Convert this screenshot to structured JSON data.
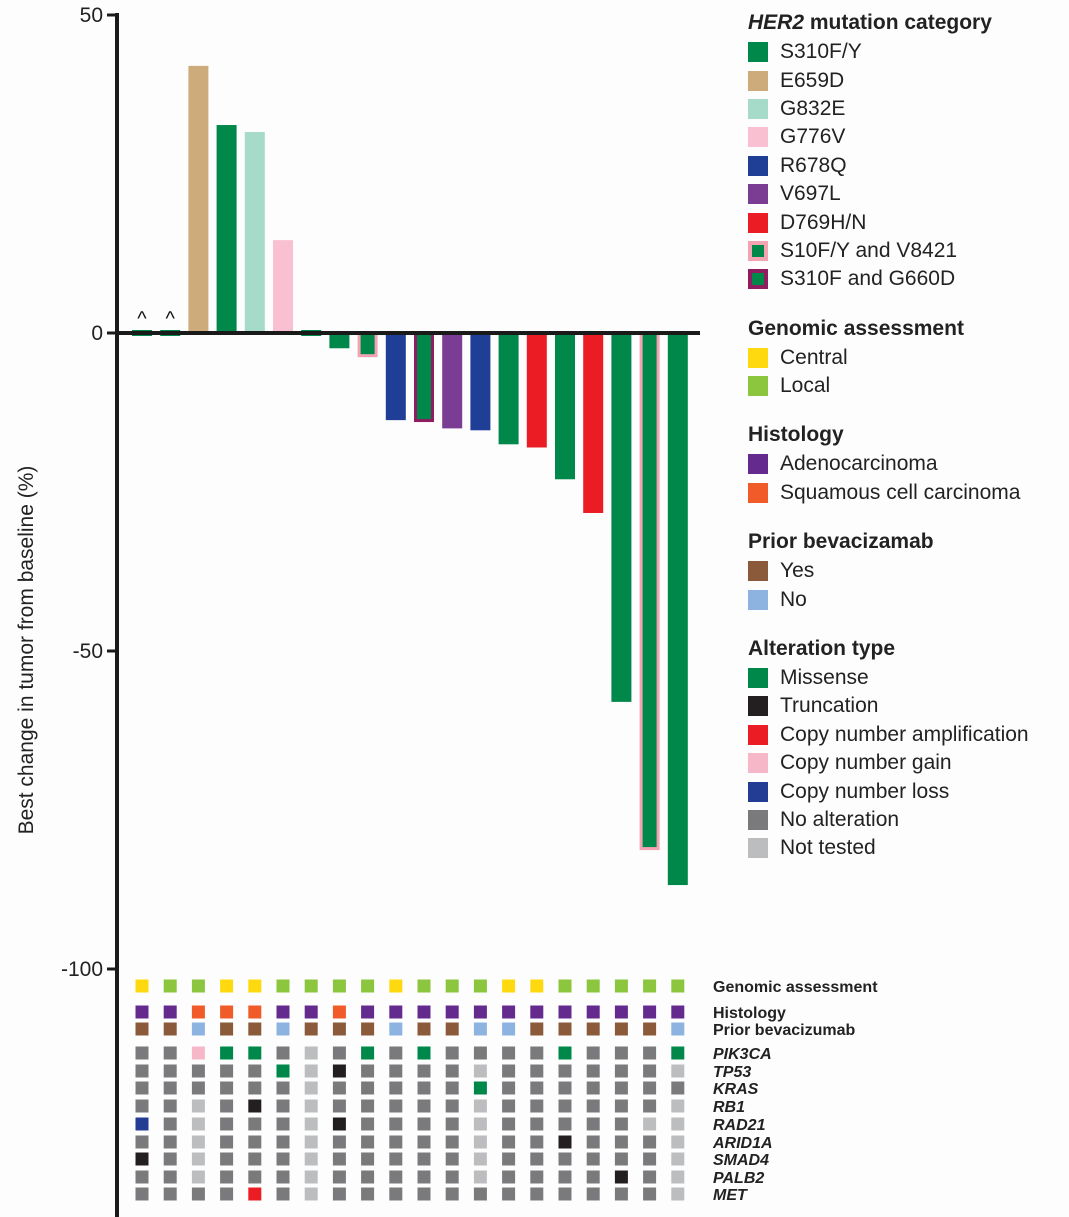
{
  "chart_data": {
    "type": "bar",
    "title": "",
    "xlabel": "",
    "ylabel": "Best change in tumor from baseline (%)",
    "ylim": [
      -100,
      50
    ],
    "yticks": [
      50,
      0,
      -50,
      -100
    ],
    "grid": false,
    "legend_position": "right",
    "bars": [
      {
        "value": 0.5,
        "category": "S310F/Y",
        "marker": "^"
      },
      {
        "value": 0.5,
        "category": "S310F/Y",
        "marker": "^"
      },
      {
        "value": 42,
        "category": "E659D",
        "marker": ""
      },
      {
        "value": 32.7,
        "category": "S310F/Y",
        "marker": ""
      },
      {
        "value": 31.6,
        "category": "G832E",
        "marker": ""
      },
      {
        "value": 14.6,
        "category": "G776V",
        "marker": ""
      },
      {
        "value": 0.5,
        "category": "S310F/Y",
        "marker": ""
      },
      {
        "value": -2.4,
        "category": "S310F/Y",
        "marker": ""
      },
      {
        "value": -3.8,
        "category": "S10F/Y and V8421",
        "marker": ""
      },
      {
        "value": -13.7,
        "category": "R678Q",
        "marker": ""
      },
      {
        "value": -14,
        "category": "S310F and G660D",
        "marker": ""
      },
      {
        "value": -15,
        "category": "V697L",
        "marker": ""
      },
      {
        "value": -15.3,
        "category": "R678Q",
        "marker": ""
      },
      {
        "value": -17.5,
        "category": "S310F/Y",
        "marker": ""
      },
      {
        "value": -18,
        "category": "D769H/N",
        "marker": ""
      },
      {
        "value": -23,
        "category": "S310F/Y",
        "marker": ""
      },
      {
        "value": -28.3,
        "category": "D769H/N",
        "marker": ""
      },
      {
        "value": -58,
        "category": "S310F/Y",
        "marker": ""
      },
      {
        "value": -81.3,
        "category": "S10F/Y and V8421",
        "marker": ""
      },
      {
        "value": -86.8,
        "category": "S310F/Y",
        "marker": ""
      }
    ],
    "mutation_colors": {
      "S310F/Y": {
        "fill": "#00874a",
        "border": ""
      },
      "E659D": {
        "fill": "#cdab7b",
        "border": ""
      },
      "G832E": {
        "fill": "#a6dac9",
        "border": ""
      },
      "G776V": {
        "fill": "#f8c0d0",
        "border": ""
      },
      "R678Q": {
        "fill": "#1f3e96",
        "border": ""
      },
      "V697L": {
        "fill": "#7b3d94",
        "border": ""
      },
      "D769H/N": {
        "fill": "#ec1c24",
        "border": ""
      },
      "S10F/Y and V8421": {
        "fill": "#00874a",
        "border": "#f4a3b3"
      },
      "S310F and G660D": {
        "fill": "#00874a",
        "border": "#8f1d5f"
      }
    },
    "annotation_rows": [
      {
        "label": "Genomic assessment",
        "gene": false,
        "legend": "genomic",
        "values": [
          "Central",
          "Local",
          "Local",
          "Central",
          "Central",
          "Local",
          "Local",
          "Local",
          "Local",
          "Central",
          "Local",
          "Local",
          "Local",
          "Central",
          "Central",
          "Local",
          "Local",
          "Local",
          "Local",
          "Local"
        ]
      },
      {
        "label": "Histology",
        "gene": false,
        "legend": "histology",
        "values": [
          "Adenocarcinoma",
          "Adenocarcinoma",
          "Squamous cell carcinoma",
          "Squamous cell carcinoma",
          "Squamous cell carcinoma",
          "Adenocarcinoma",
          "Adenocarcinoma",
          "Squamous cell carcinoma",
          "Adenocarcinoma",
          "Adenocarcinoma",
          "Adenocarcinoma",
          "Adenocarcinoma",
          "Adenocarcinoma",
          "Adenocarcinoma",
          "Adenocarcinoma",
          "Adenocarcinoma",
          "Adenocarcinoma",
          "Adenocarcinoma",
          "Adenocarcinoma",
          "Adenocarcinoma"
        ]
      },
      {
        "label": "Prior bevacizumab",
        "gene": false,
        "legend": "bevacizumab",
        "values": [
          "Yes",
          "Yes",
          "No",
          "Yes",
          "Yes",
          "No",
          "Yes",
          "Yes",
          "Yes",
          "No",
          "Yes",
          "Yes",
          "No",
          "No",
          "Yes",
          "Yes",
          "Yes",
          "Yes",
          "Yes",
          "No"
        ]
      },
      {
        "label": "PIK3CA",
        "gene": true,
        "legend": "alteration",
        "values": [
          "No alteration",
          "No alteration",
          "Copy number gain",
          "Missense",
          "Missense",
          "No alteration",
          "Not tested",
          "No alteration",
          "Missense",
          "No alteration",
          "Missense",
          "No alteration",
          "No alteration",
          "No alteration",
          "No alteration",
          "Missense",
          "No alteration",
          "No alteration",
          "No alteration",
          "Missense"
        ]
      },
      {
        "label": "TP53",
        "gene": true,
        "legend": "alteration",
        "values": [
          "No alteration",
          "No alteration",
          "No alteration",
          "No alteration",
          "No alteration",
          "Missense",
          "Not tested",
          "Truncation",
          "No alteration",
          "No alteration",
          "No alteration",
          "No alteration",
          "Not tested",
          "No alteration",
          "No alteration",
          "No alteration",
          "No alteration",
          "No alteration",
          "No alteration",
          "Not tested"
        ]
      },
      {
        "label": "KRAS",
        "gene": true,
        "legend": "alteration",
        "values": [
          "No alteration",
          "No alteration",
          "No alteration",
          "No alteration",
          "No alteration",
          "No alteration",
          "Not tested",
          "No alteration",
          "No alteration",
          "No alteration",
          "No alteration",
          "No alteration",
          "Missense",
          "No alteration",
          "No alteration",
          "No alteration",
          "No alteration",
          "No alteration",
          "No alteration",
          "No alteration"
        ]
      },
      {
        "label": "RB1",
        "gene": true,
        "legend": "alteration",
        "values": [
          "No alteration",
          "No alteration",
          "Not tested",
          "No alteration",
          "Truncation",
          "No alteration",
          "Not tested",
          "No alteration",
          "No alteration",
          "No alteration",
          "No alteration",
          "No alteration",
          "Not tested",
          "No alteration",
          "No alteration",
          "No alteration",
          "No alteration",
          "No alteration",
          "No alteration",
          "Not tested"
        ]
      },
      {
        "label": "RAD21",
        "gene": true,
        "legend": "alteration",
        "values": [
          "Copy number loss",
          "No alteration",
          "Not tested",
          "No alteration",
          "No alteration",
          "No alteration",
          "Not tested",
          "Truncation",
          "No alteration",
          "No alteration",
          "No alteration",
          "No alteration",
          "Not tested",
          "No alteration",
          "No alteration",
          "No alteration",
          "No alteration",
          "No alteration",
          "Not tested",
          "Not tested"
        ]
      },
      {
        "label": "ARID1A",
        "gene": true,
        "legend": "alteration",
        "values": [
          "No alteration",
          "No alteration",
          "Not tested",
          "No alteration",
          "No alteration",
          "No alteration",
          "Not tested",
          "No alteration",
          "No alteration",
          "No alteration",
          "No alteration",
          "No alteration",
          "Not tested",
          "No alteration",
          "No alteration",
          "Truncation",
          "No alteration",
          "No alteration",
          "No alteration",
          "Not tested"
        ]
      },
      {
        "label": "SMAD4",
        "gene": true,
        "legend": "alteration",
        "values": [
          "Truncation",
          "No alteration",
          "Not tested",
          "No alteration",
          "No alteration",
          "No alteration",
          "Not tested",
          "No alteration",
          "No alteration",
          "No alteration",
          "No alteration",
          "No alteration",
          "Not tested",
          "No alteration",
          "No alteration",
          "No alteration",
          "No alteration",
          "No alteration",
          "No alteration",
          "Not tested"
        ]
      },
      {
        "label": "PALB2",
        "gene": true,
        "legend": "alteration",
        "values": [
          "No alteration",
          "No alteration",
          "Not tested",
          "No alteration",
          "No alteration",
          "No alteration",
          "Not tested",
          "No alteration",
          "No alteration",
          "No alteration",
          "No alteration",
          "No alteration",
          "Not tested",
          "No alteration",
          "No alteration",
          "No alteration",
          "No alteration",
          "Truncation",
          "No alteration",
          "Not tested"
        ]
      },
      {
        "label": "MET",
        "gene": true,
        "legend": "alteration",
        "values": [
          "No alteration",
          "No alteration",
          "No alteration",
          "No alteration",
          "Copy number amplification",
          "No alteration",
          "Not tested",
          "No alteration",
          "No alteration",
          "No alteration",
          "No alteration",
          "No alteration",
          "No alteration",
          "No alteration",
          "No alteration",
          "No alteration",
          "No alteration",
          "No alteration",
          "No alteration",
          "Not tested"
        ]
      }
    ]
  },
  "legend": {
    "mutation": {
      "title_italic": "HER2",
      "title_rest": " mutation category",
      "items": [
        {
          "label": "S310F/Y",
          "fill": "#00874a",
          "border": ""
        },
        {
          "label": "E659D",
          "fill": "#cdab7b",
          "border": ""
        },
        {
          "label": "G832E",
          "fill": "#a6dac9",
          "border": ""
        },
        {
          "label": "G776V",
          "fill": "#f8c0d0",
          "border": ""
        },
        {
          "label": "R678Q",
          "fill": "#1f3e96",
          "border": ""
        },
        {
          "label": "V697L",
          "fill": "#7b3d94",
          "border": ""
        },
        {
          "label": "D769H/N",
          "fill": "#ec1c24",
          "border": ""
        },
        {
          "label": "S10F/Y and V8421",
          "fill": "#00874a",
          "border": "#f4a3b3"
        },
        {
          "label": "S310F and G660D",
          "fill": "#00874a",
          "border": "#8f1d5f"
        }
      ]
    },
    "genomic": {
      "title": "Genomic assessment",
      "items": [
        {
          "label": "Central",
          "fill": "#ffd90f",
          "border": ""
        },
        {
          "label": "Local",
          "fill": "#8cc53e",
          "border": ""
        }
      ]
    },
    "histology": {
      "title": "Histology",
      "items": [
        {
          "label": "Adenocarcinoma",
          "fill": "#652a8e",
          "border": ""
        },
        {
          "label": "Squamous cell carcinoma",
          "fill": "#f15a29",
          "border": ""
        }
      ]
    },
    "bevacizumab": {
      "title": "Prior bevacizamab",
      "items": [
        {
          "label": "Yes",
          "fill": "#8b5a3a",
          "border": ""
        },
        {
          "label": "No",
          "fill": "#8db3e0",
          "border": ""
        }
      ]
    },
    "alteration": {
      "title": "Alteration type",
      "items": [
        {
          "label": "Missense",
          "fill": "#00874a",
          "border": ""
        },
        {
          "label": "Truncation",
          "fill": "#231f20",
          "border": ""
        },
        {
          "label": "Copy number amplification",
          "fill": "#ec1c24",
          "border": ""
        },
        {
          "label": "Copy number gain",
          "fill": "#f6b8c9",
          "border": ""
        },
        {
          "label": "Copy number loss",
          "fill": "#233d95",
          "border": ""
        },
        {
          "label": "No alteration",
          "fill": "#7a7a7c",
          "border": ""
        },
        {
          "label": "Not tested",
          "fill": "#bcbdbf",
          "border": ""
        }
      ]
    }
  }
}
